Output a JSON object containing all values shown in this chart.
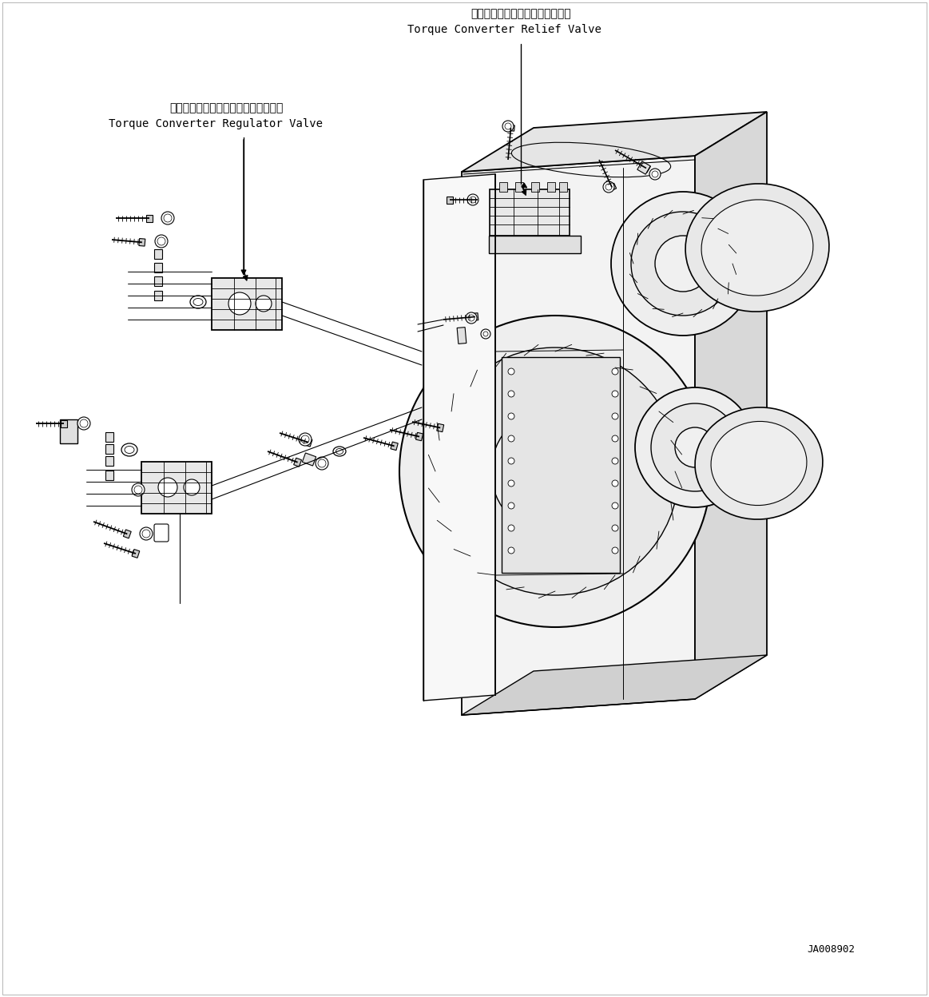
{
  "figure_width": 11.63,
  "figure_height": 12.48,
  "dpi": 100,
  "bg_color": "#ffffff",
  "label_relief_valve_jp": "トルクコンバータリリーフバルブ",
  "label_relief_valve_en": "Torque Converter Relief Valve",
  "label_regulator_valve_jp": "トルクコンバータレギュレータバルブ",
  "label_regulator_valve_en": "Torque Converter Regulator Valve",
  "part_number": "JA008902",
  "lc": "#000000",
  "lw": 1.0
}
